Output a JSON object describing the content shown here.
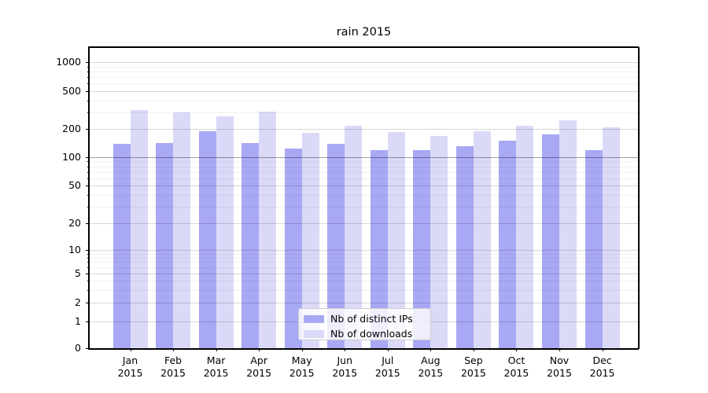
{
  "title": "rain 2015",
  "legend": {
    "items": [
      {
        "label": "Nb of distinct IPs",
        "color": "#a8a8f4"
      },
      {
        "label": "Nb of downloads",
        "color": "#dadaf8"
      }
    ]
  },
  "chart_data": {
    "type": "bar",
    "title": "rain 2015",
    "categories": [
      "Jan 2015",
      "Feb 2015",
      "Mar 2015",
      "Apr 2015",
      "May 2015",
      "Jun 2015",
      "Jul 2015",
      "Aug 2015",
      "Sep 2015",
      "Oct 2015",
      "Nov 2015",
      "Dec 2015"
    ],
    "x_tick_months": [
      "Jan",
      "Feb",
      "Mar",
      "Apr",
      "May",
      "Jun",
      "Jul",
      "Aug",
      "Sep",
      "Oct",
      "Nov",
      "Dec"
    ],
    "x_tick_year": "2015",
    "series": [
      {
        "name": "Nb of distinct IPs",
        "color": "#a8a8f4",
        "values": [
          140,
          141,
          190,
          141,
          124,
          138,
          120,
          119,
          131,
          150,
          174,
          120
        ]
      },
      {
        "name": "Nb of downloads",
        "color": "#dadaf8",
        "values": [
          318,
          297,
          271,
          303,
          181,
          215,
          185,
          168,
          189,
          216,
          245,
          208
        ]
      }
    ],
    "yscale": "log (with 0 baseline)",
    "y_ticks": [
      1000,
      500,
      200,
      100,
      50,
      20,
      10,
      5,
      2,
      1,
      0
    ],
    "ylim": [
      0,
      1400
    ],
    "grid": "both (minor log gridlines shown, line at 100 emphasized)",
    "legend_position": "lower center",
    "xlabel": "",
    "ylabel": ""
  }
}
